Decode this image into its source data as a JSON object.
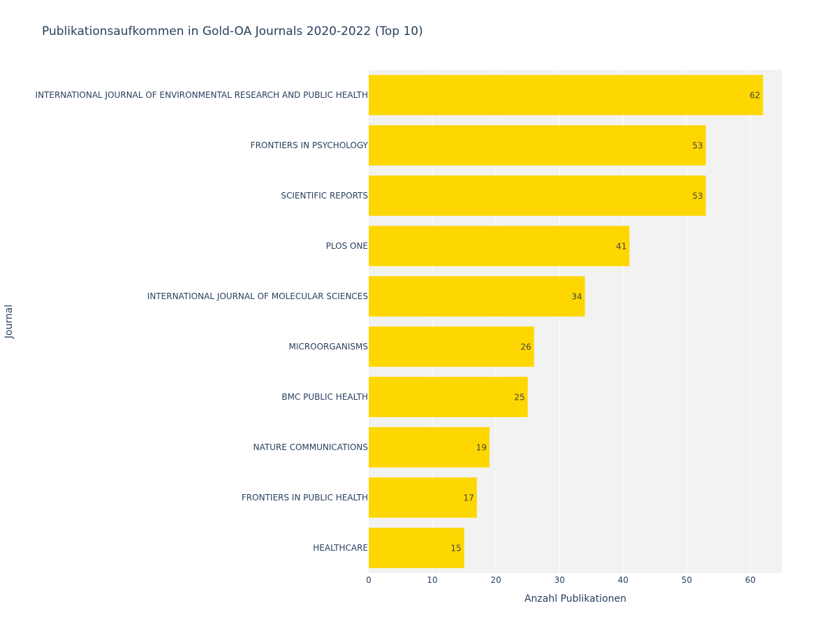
{
  "chart_data": {
    "type": "bar",
    "orientation": "horizontal",
    "title": "Publikationsaufkommen in Gold-OA Journals 2020-2022 (Top 10)",
    "xlabel": "Anzahl Publikationen",
    "ylabel": "Journal",
    "xlim": [
      0,
      65
    ],
    "xticks": [
      0,
      10,
      20,
      30,
      40,
      50,
      60
    ],
    "grid": true,
    "legend": "none",
    "colors": {
      "bar": "#FFD700",
      "plot_background": "#F2F2F2",
      "grid": "#FFFFFF",
      "text": "#2a3f5f",
      "bar_label": "#444444"
    },
    "categories": [
      "INTERNATIONAL JOURNAL OF ENVIRONMENTAL RESEARCH AND PUBLIC HEALTH",
      "FRONTIERS IN PSYCHOLOGY",
      "SCIENTIFIC REPORTS",
      "PLOS ONE",
      "INTERNATIONAL JOURNAL OF MOLECULAR SCIENCES",
      "MICROORGANISMS",
      "BMC PUBLIC HEALTH",
      "NATURE COMMUNICATIONS",
      "FRONTIERS IN PUBLIC HEALTH",
      "HEALTHCARE"
    ],
    "values": [
      62,
      53,
      53,
      41,
      34,
      26,
      25,
      19,
      17,
      15
    ]
  }
}
